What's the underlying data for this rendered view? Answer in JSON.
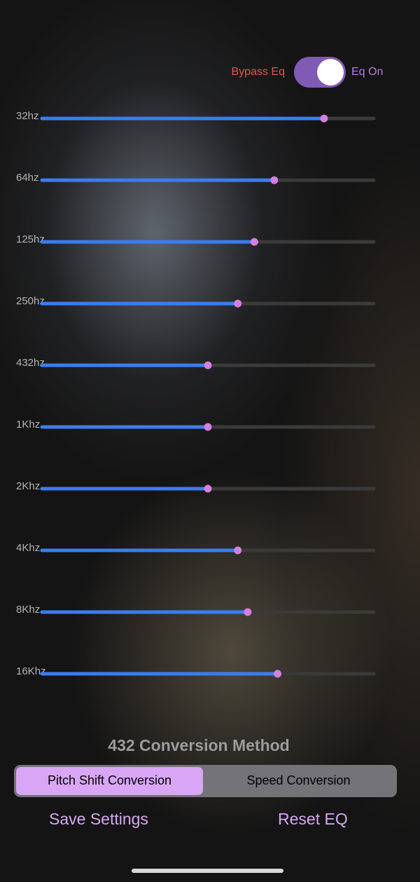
{
  "toggle": {
    "bypass_label": "Bypass Eq",
    "on_label": "Eq On",
    "on": true
  },
  "bands": [
    {
      "label": "32hz",
      "value": 0.85
    },
    {
      "label": "64hz",
      "value": 0.7
    },
    {
      "label": "125hz",
      "value": 0.64
    },
    {
      "label": "250hz",
      "value": 0.59
    },
    {
      "label": "432hz",
      "value": 0.5
    },
    {
      "label": "1Khz",
      "value": 0.5
    },
    {
      "label": "2Khz",
      "value": 0.5
    },
    {
      "label": "4Khz",
      "value": 0.59
    },
    {
      "label": "8Khz",
      "value": 0.62
    },
    {
      "label": "16Khz",
      "value": 0.71
    }
  ],
  "conversion": {
    "title": "432 Conversion Method",
    "options": [
      "Pitch Shift Conversion",
      "Speed Conversion"
    ],
    "selected": 0
  },
  "buttons": {
    "save": "Save Settings",
    "reset": "Reset EQ"
  }
}
